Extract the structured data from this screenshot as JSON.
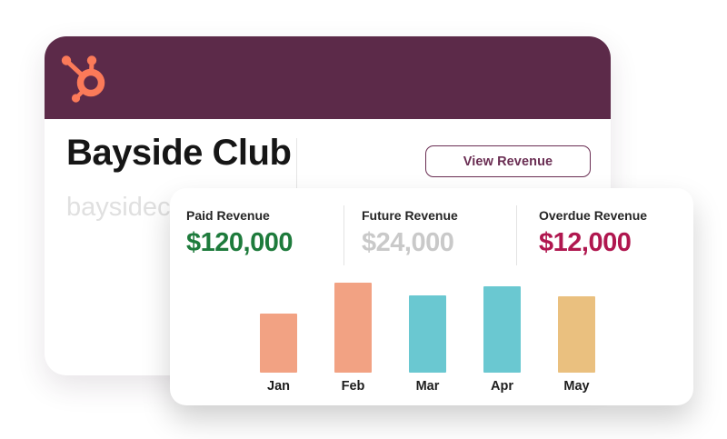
{
  "brand": {
    "logo_icon": "hubspot-sprocket-icon",
    "logo_color": "#FB7A59",
    "header_color": "#5C2A49"
  },
  "company_card": {
    "title": "Bayside Club",
    "subtitle": "baysideclu",
    "view_revenue_label": "View Revenue",
    "accent_color": "#6A2E53"
  },
  "revenue_card": {
    "stats": [
      {
        "label": "Paid Revenue",
        "value": "$120,000",
        "color": "#1E7B3C"
      },
      {
        "label": "Future Revenue",
        "value": "$24,000",
        "color": "#C9C9C9"
      },
      {
        "label": "Overdue Revenue",
        "value": "$12,000",
        "color": "#B0174F"
      }
    ]
  },
  "chart_data": {
    "type": "bar",
    "categories": [
      "Jan",
      "Feb",
      "Mar",
      "Apr",
      "May"
    ],
    "values": [
      66,
      100,
      86,
      96,
      85
    ],
    "values_unit": "relative height, % of tallest bar (no value axis shown)",
    "bar_colors": [
      "#F2A283",
      "#F2A283",
      "#6AC8D1",
      "#6AC8D1",
      "#EAC07F"
    ],
    "title": "",
    "xlabel": "",
    "ylabel": "",
    "ylim": [
      0,
      100
    ],
    "legend": "none",
    "grid": false,
    "axes_shown": false
  }
}
